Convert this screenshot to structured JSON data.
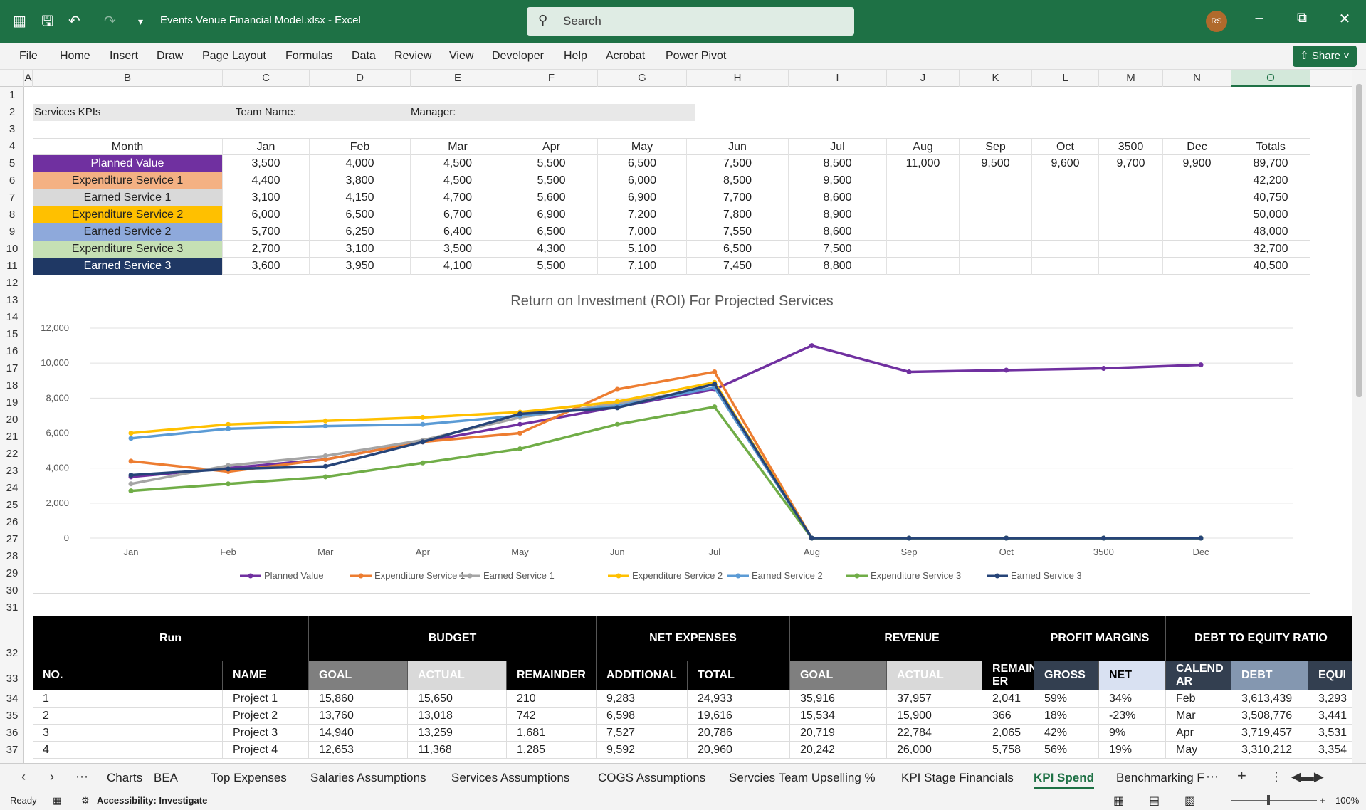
{
  "app": {
    "title": "Events Venue Financial Model.xlsx  -  Excel",
    "search_placeholder": "Search",
    "avatar": "RS",
    "share_label": "Share"
  },
  "menu": [
    "File",
    "Home",
    "Insert",
    "Draw",
    "Page Layout",
    "Formulas",
    "Data",
    "Review",
    "View",
    "Developer",
    "Help",
    "Acrobat",
    "Power Pivot"
  ],
  "columns": [
    "A",
    "B",
    "C",
    "D",
    "E",
    "F",
    "G",
    "H",
    "I",
    "J",
    "K",
    "L",
    "M",
    "N",
    "O"
  ],
  "rows": [
    "1",
    "2",
    "3",
    "4",
    "5",
    "6",
    "7",
    "8",
    "9",
    "10",
    "11",
    "12",
    "13",
    "14",
    "15",
    "16",
    "17",
    "18",
    "19",
    "20",
    "21",
    "22",
    "23",
    "24",
    "25",
    "26",
    "27",
    "28",
    "29",
    "30",
    "31",
    "32",
    "33",
    "34",
    "35",
    "36",
    "37"
  ],
  "kpi_header": {
    "services_kpis": "Services KPIs",
    "team_name": "Team Name:",
    "manager": "Manager:"
  },
  "kpi_table": {
    "header": [
      "Month",
      "Jan",
      "Feb",
      "Mar",
      "Apr",
      "May",
      "Jun",
      "Jul",
      "Aug",
      "Sep",
      "Oct",
      "3500",
      "Dec",
      "Totals"
    ],
    "rows": [
      {
        "label": "Planned Value",
        "bg": "#7030a0",
        "fg": "#ffffff",
        "values": [
          "3,500",
          "4,000",
          "4,500",
          "5,500",
          "6,500",
          "7,500",
          "8,500",
          "11,000",
          "9,500",
          "9,600",
          "9,700",
          "9,900",
          "89,700"
        ]
      },
      {
        "label": "Expenditure Service 1",
        "bg": "#f4b183",
        "fg": "#222222",
        "values": [
          "4,400",
          "3,800",
          "4,500",
          "5,500",
          "6,000",
          "8,500",
          "9,500",
          "",
          "",
          "",
          "",
          "",
          "42,200"
        ]
      },
      {
        "label": "Earned Service 1",
        "bg": "#d9d9d9",
        "fg": "#222222",
        "values": [
          "3,100",
          "4,150",
          "4,700",
          "5,600",
          "6,900",
          "7,700",
          "8,600",
          "",
          "",
          "",
          "",
          "",
          "40,750"
        ]
      },
      {
        "label": "Expenditure Service 2",
        "bg": "#ffc000",
        "fg": "#222222",
        "values": [
          "6,000",
          "6,500",
          "6,700",
          "6,900",
          "7,200",
          "7,800",
          "8,900",
          "",
          "",
          "",
          "",
          "",
          "50,000"
        ]
      },
      {
        "label": "Earned Service 2",
        "bg": "#8ea9db",
        "fg": "#222222",
        "values": [
          "5,700",
          "6,250",
          "6,400",
          "6,500",
          "7,000",
          "7,550",
          "8,600",
          "",
          "",
          "",
          "",
          "",
          "48,000"
        ]
      },
      {
        "label": "Expenditure Service 3",
        "bg": "#c5e0b4",
        "fg": "#222222",
        "values": [
          "2,700",
          "3,100",
          "3,500",
          "4,300",
          "5,100",
          "6,500",
          "7,500",
          "",
          "",
          "",
          "",
          "",
          "32,700"
        ]
      },
      {
        "label": "Earned Service 3",
        "bg": "#1f3864",
        "fg": "#ffffff",
        "values": [
          "3,600",
          "3,950",
          "4,100",
          "5,500",
          "7,100",
          "7,450",
          "8,800",
          "",
          "",
          "",
          "",
          "",
          "40,500"
        ]
      }
    ]
  },
  "chart_data": {
    "type": "line",
    "title": "Return on Investment (ROI) For Projected Services",
    "categories": [
      "Jan",
      "Feb",
      "Mar",
      "Apr",
      "May",
      "Jun",
      "Jul",
      "Aug",
      "Sep",
      "Oct",
      "3500",
      "Dec"
    ],
    "y_ticks": [
      "0",
      "2,000",
      "4,000",
      "6,000",
      "8,000",
      "10,000",
      "12,000"
    ],
    "ylim": [
      0,
      12000
    ],
    "legend_position": "bottom",
    "series": [
      {
        "name": "Planned Value",
        "color": "#7030a0",
        "values": [
          3500,
          4000,
          4500,
          5500,
          6500,
          7500,
          8500,
          11000,
          9500,
          9600,
          9700,
          9900
        ]
      },
      {
        "name": "Expenditure Service 1",
        "color": "#ed7d31",
        "values": [
          4400,
          3800,
          4500,
          5500,
          6000,
          8500,
          9500,
          0,
          0,
          0,
          0,
          0
        ]
      },
      {
        "name": "Earned Service 1",
        "color": "#a5a5a5",
        "values": [
          3100,
          4150,
          4700,
          5600,
          6900,
          7700,
          8600,
          0,
          0,
          0,
          0,
          0
        ]
      },
      {
        "name": "Expenditure Service 2",
        "color": "#ffc000",
        "values": [
          6000,
          6500,
          6700,
          6900,
          7200,
          7800,
          8900,
          0,
          0,
          0,
          0,
          0
        ]
      },
      {
        "name": "Earned Service 2",
        "color": "#5b9bd5",
        "values": [
          5700,
          6250,
          6400,
          6500,
          7000,
          7550,
          8600,
          0,
          0,
          0,
          0,
          0
        ]
      },
      {
        "name": "Expenditure Service 3",
        "color": "#70ad47",
        "values": [
          2700,
          3100,
          3500,
          4300,
          5100,
          6500,
          7500,
          0,
          0,
          0,
          0,
          0
        ]
      },
      {
        "name": "Earned Service 3",
        "color": "#264478",
        "values": [
          3600,
          3950,
          4100,
          5500,
          7100,
          7450,
          8800,
          0,
          0,
          0,
          0,
          0
        ]
      }
    ]
  },
  "bottom_table": {
    "groups": [
      "Run",
      "BUDGET",
      "NET EXPENSES",
      "REVENUE",
      "PROFIT MARGINS",
      "DEBT TO EQUITY RATIO"
    ],
    "subheaders": [
      "NO.",
      "NAME",
      "GOAL",
      "ACTUAL",
      "REMAINDER",
      "ADDITIONAL",
      "TOTAL",
      "GOAL",
      "ACTUAL",
      "REMAIND ER",
      "GROSS",
      "NET",
      "CALEND AR",
      "DEBT",
      "EQUI"
    ],
    "rows": [
      [
        "1",
        "Project 1",
        "15,860",
        "15,650",
        "210",
        "9,283",
        "24,933",
        "35,916",
        "37,957",
        "2,041",
        "59%",
        "34%",
        "Feb",
        "3,613,439",
        "3,293"
      ],
      [
        "2",
        "Project 2",
        "13,760",
        "13,018",
        "742",
        "6,598",
        "19,616",
        "15,534",
        "15,900",
        "366",
        "18%",
        "-23%",
        "Mar",
        "3,508,776",
        "3,441"
      ],
      [
        "3",
        "Project 3",
        "14,940",
        "13,259",
        "1,681",
        "7,527",
        "20,786",
        "20,719",
        "22,784",
        "2,065",
        "42%",
        "9%",
        "Apr",
        "3,719,457",
        "3,531"
      ],
      [
        "4",
        "Project 4",
        "12,653",
        "11,368",
        "1,285",
        "9,592",
        "20,960",
        "20,242",
        "26,000",
        "5,758",
        "56%",
        "19%",
        "May",
        "3,310,212",
        "3,354"
      ]
    ]
  },
  "sheet_tabs": [
    "Charts",
    "BEA",
    "Top Expenses",
    "Salaries Assumptions",
    "Services Assumptions",
    "COGS Assumptions",
    "Servcies Team Upselling %",
    "KPI Stage Financials",
    "KPI Spend",
    "Benchmarking F"
  ],
  "active_tab": "KPI Spend",
  "status": {
    "ready": "Ready",
    "accessibility": "Accessibility: Investigate",
    "zoom": "100%"
  }
}
